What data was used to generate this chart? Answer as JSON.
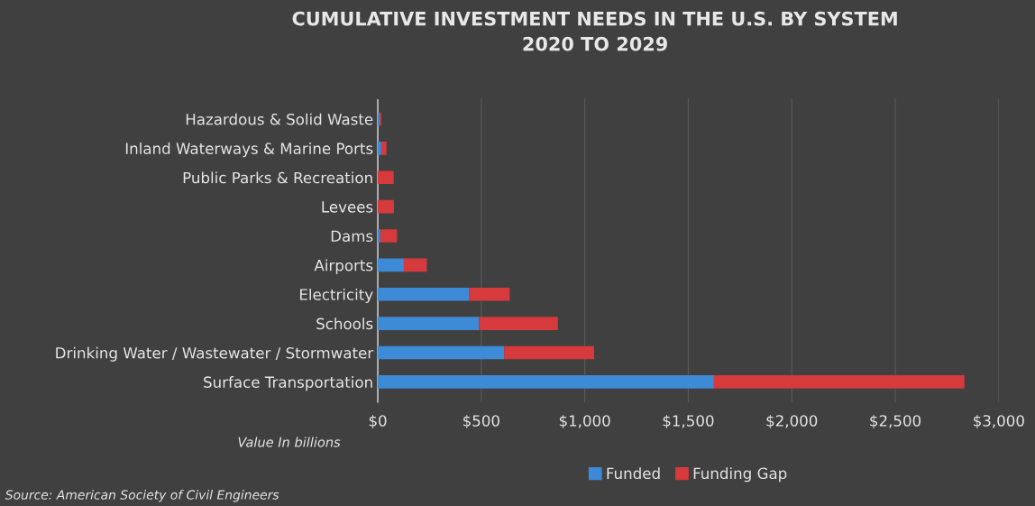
{
  "chart_data": {
    "type": "bar",
    "orientation": "horizontal",
    "stacked": true,
    "title": "CUMULATIVE INVESTMENT NEEDS IN THE U.S. BY SYSTEM\n2020 TO 2029",
    "xlabel": "Value In billions",
    "categories": [
      "Hazardous & Solid Waste",
      "Inland Waterways & Marine Ports",
      "Public Parks & Recreation",
      "Levees",
      "Dams",
      "Airports",
      "Electricity",
      "Schools",
      "Drinking Water / Wastewater / Stormwater",
      "Surface Transportation"
    ],
    "series": [
      {
        "name": "Funded",
        "color": "#3d8ad6",
        "values": [
          10,
          17,
          0,
          null,
          12,
          126,
          440,
          490,
          611,
          1624
        ]
      },
      {
        "name": "Funding Gap",
        "color": "#d63a3c",
        "values": [
          7,
          25,
          77,
          78,
          81,
          111,
          197,
          380,
          434,
          1210
        ]
      }
    ],
    "xlim": [
      0,
      3000
    ],
    "xticks": [
      {
        "value": 0,
        "label": "$0"
      },
      {
        "value": 500,
        "label": "$500"
      },
      {
        "value": 1000,
        "label": "$1,000"
      },
      {
        "value": 1500,
        "label": "$1,500"
      },
      {
        "value": 2000,
        "label": "$2,000"
      },
      {
        "value": 2500,
        "label": "$2,500"
      },
      {
        "value": 3000,
        "label": "$3,000"
      }
    ],
    "grid": "x",
    "legend": "bottom",
    "annotations": [
      "Source: American Society of Civil Engineers"
    ]
  }
}
